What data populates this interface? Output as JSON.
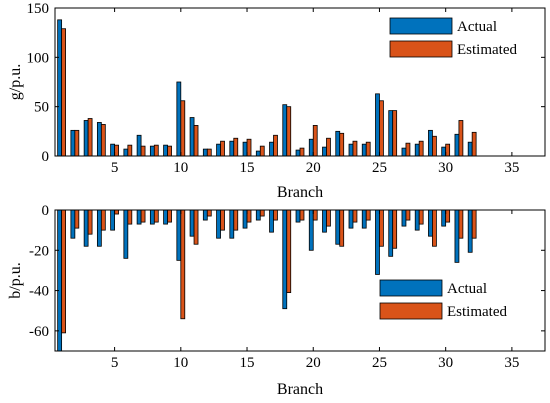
{
  "chart_data": [
    {
      "type": "bar",
      "ylabel": "g/p.u.",
      "xlabel": "Branch",
      "xlim": [
        0.5,
        37.5
      ],
      "ylim": [
        0,
        150
      ],
      "xticks": [
        5,
        10,
        15,
        20,
        25,
        30,
        35
      ],
      "yticks": [
        0,
        50,
        100,
        150
      ],
      "legend_position": "top-right",
      "x": [
        1,
        2,
        3,
        4,
        5,
        6,
        7,
        8,
        9,
        10,
        11,
        12,
        13,
        14,
        15,
        16,
        17,
        18,
        19,
        20,
        21,
        22,
        23,
        24,
        25,
        26,
        27,
        28,
        29,
        30,
        31,
        32
      ],
      "series": [
        {
          "name": "Actual",
          "color": "#0072BD",
          "values": [
            138,
            26,
            36,
            34,
            12,
            7,
            21,
            10,
            11,
            75,
            39,
            7,
            12,
            15,
            14,
            5,
            14,
            52,
            6,
            17,
            9,
            25,
            12,
            12,
            63,
            46,
            8,
            12,
            26,
            9,
            22,
            14
          ]
        },
        {
          "name": "Estimated",
          "color": "#D95319",
          "values": [
            129,
            26,
            38,
            32,
            11,
            11,
            10,
            11,
            10,
            56,
            31,
            7,
            15,
            18,
            17,
            10,
            21,
            50,
            8,
            31,
            18,
            23,
            15,
            14,
            56,
            46,
            13,
            15,
            20,
            12,
            36,
            24
          ]
        }
      ]
    },
    {
      "type": "bar",
      "ylabel": "b/p.u.",
      "xlabel": "Branch",
      "xlim": [
        0.5,
        37.5
      ],
      "ylim": [
        -70,
        0
      ],
      "xticks": [
        5,
        10,
        15,
        20,
        25,
        30,
        35
      ],
      "yticks": [
        0,
        -20,
        -40,
        -60
      ],
      "legend_position": "bottom-right",
      "x": [
        1,
        2,
        3,
        4,
        5,
        6,
        7,
        8,
        9,
        10,
        11,
        12,
        13,
        14,
        15,
        16,
        17,
        18,
        19,
        20,
        21,
        22,
        23,
        24,
        25,
        26,
        27,
        28,
        29,
        30,
        31,
        32
      ],
      "series": [
        {
          "name": "Actual",
          "color": "#0072BD",
          "values": [
            -71,
            -14,
            -18,
            -18,
            -10,
            -24,
            -7,
            -7,
            -7,
            -25,
            -13,
            -5,
            -14,
            -14,
            -9,
            -5,
            -11,
            -49,
            -6,
            -20,
            -11,
            -17,
            -9,
            -9,
            -32,
            -23,
            -8,
            -10,
            -13,
            -8,
            -26,
            -21
          ]
        },
        {
          "name": "Estimated",
          "color": "#D95319",
          "values": [
            -61,
            -9,
            -12,
            -10,
            -2,
            -7,
            -6,
            -6,
            -6,
            -54,
            -17,
            -3,
            -10,
            -10,
            -6,
            -3,
            -5,
            -41,
            -5,
            -5,
            -8,
            -18,
            -6,
            -5,
            -18,
            -19,
            -5,
            -7,
            -18,
            -6,
            -14,
            -14
          ]
        }
      ]
    }
  ]
}
